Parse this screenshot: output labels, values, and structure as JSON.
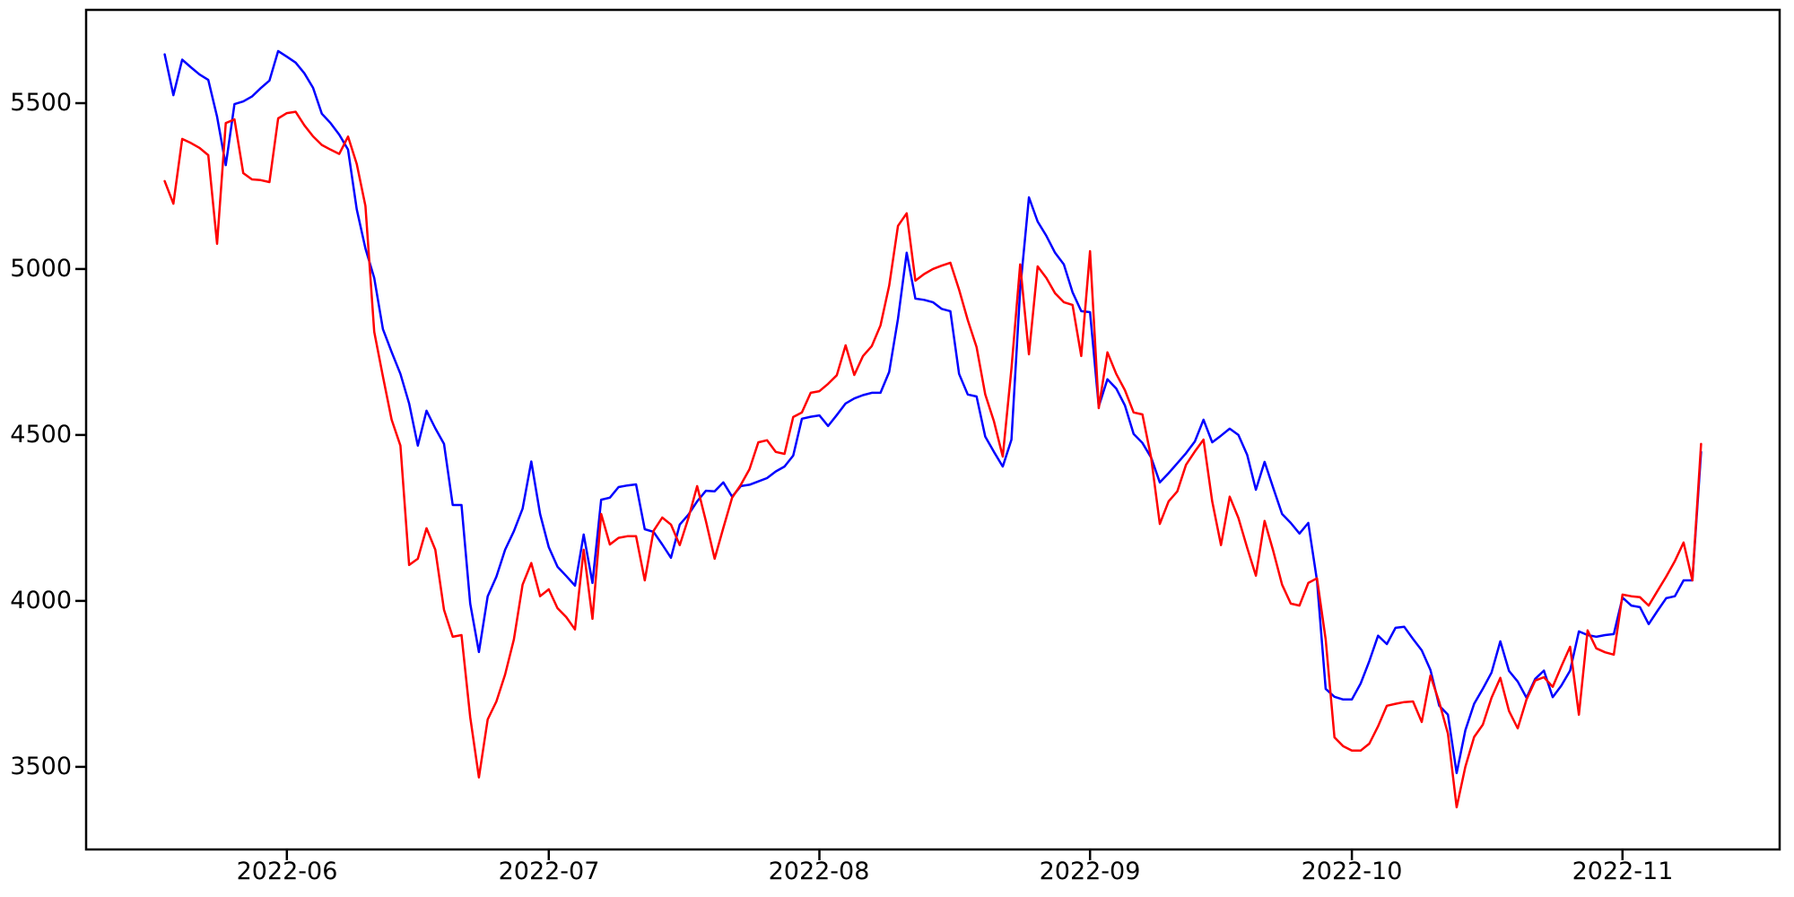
{
  "window": {
    "background_color": "#ffffff"
  },
  "chart_data": {
    "type": "line",
    "title": "",
    "xlabel": "",
    "ylabel": "",
    "grid": false,
    "legend": null,
    "axis_color": "#000000",
    "xlim": [
      "2022-05-09",
      "2022-11-19"
    ],
    "ylim": [
      3251,
      5781
    ],
    "y_ticks": [
      3500,
      4000,
      4500,
      5000,
      5500
    ],
    "y_tick_labels": [
      "3500",
      "4000",
      "4500",
      "5000",
      "5500"
    ],
    "x_ticks": [
      "2022-06-01",
      "2022-07-01",
      "2022-08-01",
      "2022-09-01",
      "2022-10-01",
      "2022-11-01"
    ],
    "x_tick_labels": [
      "2022-06",
      "2022-07",
      "2022-08",
      "2022-09",
      "2022-10",
      "2022-11"
    ],
    "series": [
      {
        "name": "series-blue",
        "color": "#0000ff",
        "start_date": "2022-05-18",
        "frequency": "daily",
        "values": [
          5647,
          5524,
          5631,
          5608,
          5586,
          5570,
          5459,
          5313,
          5497,
          5505,
          5520,
          5545,
          5568,
          5657,
          5640,
          5622,
          5590,
          5546,
          5468,
          5440,
          5405,
          5360,
          5180,
          5062,
          4973,
          4819,
          4750,
          4684,
          4595,
          4468,
          4573,
          4520,
          4473,
          4289,
          4289,
          3992,
          3846,
          4014,
          4073,
          4154,
          4210,
          4278,
          4420,
          4262,
          4162,
          4103,
          4075,
          4046,
          4200,
          4054,
          4305,
          4311,
          4343,
          4348,
          4351,
          4216,
          4208,
          4170,
          4130,
          4230,
          4260,
          4300,
          4332,
          4330,
          4357,
          4314,
          4346,
          4350,
          4360,
          4370,
          4390,
          4405,
          4438,
          4549,
          4555,
          4559,
          4527,
          4560,
          4595,
          4610,
          4620,
          4627,
          4627,
          4690,
          4850,
          5049,
          4911,
          4907,
          4900,
          4880,
          4873,
          4684,
          4622,
          4616,
          4495,
          4449,
          4405,
          4486,
          4938,
          5216,
          5143,
          5100,
          5049,
          5014,
          4930,
          4873,
          4870,
          4586,
          4668,
          4640,
          4589,
          4503,
          4476,
          4432,
          4357,
          4385,
          4415,
          4445,
          4480,
          4546,
          4478,
          4498,
          4519,
          4500,
          4440,
          4335,
          4419,
          4340,
          4262,
          4235,
          4203,
          4235,
          4062,
          3735,
          3711,
          3703,
          3703,
          3751,
          3819,
          3895,
          3870,
          3919,
          3922,
          3885,
          3851,
          3792,
          3684,
          3657,
          3481,
          3610,
          3690,
          3735,
          3784,
          3878,
          3789,
          3757,
          3708,
          3765,
          3790,
          3710,
          3745,
          3790,
          3908,
          3897,
          3892,
          3897,
          3900,
          4010,
          3986,
          3981,
          3930,
          3970,
          4008,
          4014,
          4062,
          4062,
          4449
        ]
      },
      {
        "name": "series-red",
        "color": "#ff0000",
        "start_date": "2022-05-18",
        "frequency": "daily",
        "values": [
          5265,
          5197,
          5392,
          5380,
          5365,
          5343,
          5076,
          5440,
          5451,
          5289,
          5270,
          5268,
          5262,
          5454,
          5470,
          5474,
          5433,
          5400,
          5374,
          5360,
          5347,
          5399,
          5317,
          5190,
          4811,
          4676,
          4546,
          4468,
          4108,
          4127,
          4219,
          4154,
          3973,
          3892,
          3897,
          3650,
          3468,
          3643,
          3697,
          3778,
          3884,
          4049,
          4114,
          4014,
          4035,
          3978,
          3951,
          3914,
          4154,
          3946,
          4262,
          4170,
          4190,
          4195,
          4195,
          4062,
          4211,
          4251,
          4230,
          4168,
          4250,
          4346,
          4240,
          4127,
          4220,
          4311,
          4350,
          4397,
          4478,
          4484,
          4449,
          4443,
          4554,
          4568,
          4627,
          4632,
          4654,
          4680,
          4770,
          4681,
          4738,
          4768,
          4830,
          4950,
          5130,
          5168,
          4965,
          4985,
          5000,
          5010,
          5019,
          4938,
          4846,
          4765,
          4622,
          4541,
          4435,
          4700,
          5014,
          4743,
          5008,
          4973,
          4927,
          4900,
          4892,
          4738,
          5054,
          4581,
          4749,
          4684,
          4635,
          4568,
          4562,
          4432,
          4232,
          4300,
          4330,
          4410,
          4450,
          4486,
          4300,
          4168,
          4314,
          4250,
          4160,
          4076,
          4241,
          4150,
          4049,
          3992,
          3986,
          4054,
          4068,
          3884,
          3589,
          3562,
          3549,
          3549,
          3570,
          3622,
          3684,
          3690,
          3695,
          3697,
          3635,
          3775,
          3695,
          3600,
          3378,
          3500,
          3590,
          3627,
          3708,
          3768,
          3668,
          3616,
          3703,
          3760,
          3770,
          3741,
          3803,
          3862,
          3657,
          3911,
          3857,
          3845,
          3838,
          4019,
          4014,
          4011,
          3986,
          4030,
          4073,
          4120,
          4176,
          4062,
          4473
        ]
      }
    ]
  }
}
